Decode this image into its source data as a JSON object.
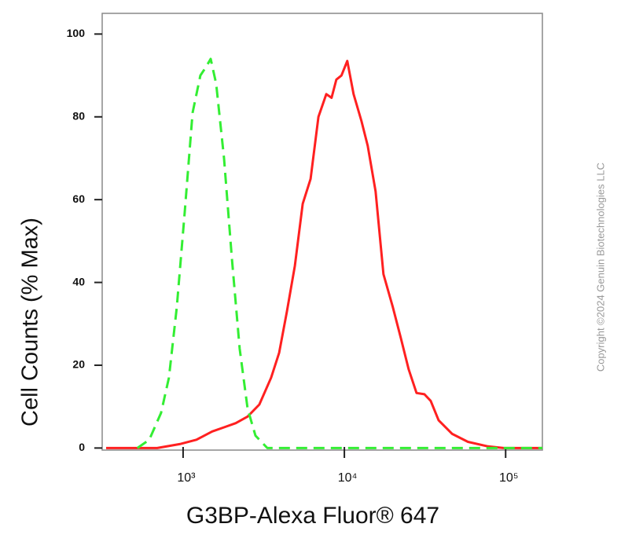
{
  "chart_data": {
    "type": "line",
    "xlabel": "G3BP-Alexa Fluor® 647",
    "ylabel": "Cell Counts (% Max)",
    "copyright": "Copyright ©2024 Genuin Biotechnologies LLC",
    "xscale": "log",
    "xlim": [
      315,
      169000
    ],
    "ylim": [
      -0.5,
      105
    ],
    "xticks": [
      {
        "value": 1000,
        "label": "10³"
      },
      {
        "value": 10000,
        "label": "10⁴"
      },
      {
        "value": 100000,
        "label": "10⁵"
      }
    ],
    "yticks": [
      0,
      20,
      40,
      60,
      80,
      100
    ],
    "series": [
      {
        "color": "#ff2020",
        "linestyle": "solid",
        "x": [
          333,
          690,
          967,
          1210,
          1515,
          1793,
          2120,
          2511,
          2970,
          3514,
          3938,
          4405,
          4930,
          5515,
          6171,
          6903,
          7724,
          8330,
          8915,
          9600,
          10430,
          11400,
          12760,
          13960,
          15620,
          17480,
          20000,
          22380,
          25040,
          28020,
          31350,
          34310,
          38400,
          46620,
          58380,
          77700,
          97350,
          169000
        ],
        "values": [
          0,
          0,
          1,
          2,
          4,
          5,
          6,
          7.6,
          10.5,
          17,
          23,
          33,
          44,
          59,
          65,
          80,
          85.5,
          84.6,
          89,
          90,
          93.5,
          85.5,
          79,
          73,
          62,
          42,
          34,
          26.6,
          19,
          13.3,
          13,
          11.4,
          6.7,
          3.4,
          1.5,
          0.4,
          0,
          0
        ]
      },
      {
        "color": "#33ee33",
        "linestyle": "dashed",
        "x": [
          521,
          617,
          730,
          817,
          914,
          1023,
          1145,
          1280,
          1385,
          1482,
          1603,
          1793,
          2005,
          2244,
          2511,
          2810,
          3330,
          4167,
          10000,
          100000,
          169000
        ],
        "values": [
          0,
          2,
          8.5,
          17,
          34,
          57,
          81,
          90,
          92,
          94,
          88,
          70,
          46,
          24,
          9.5,
          3,
          0,
          0,
          0,
          0,
          0
        ]
      }
    ]
  }
}
